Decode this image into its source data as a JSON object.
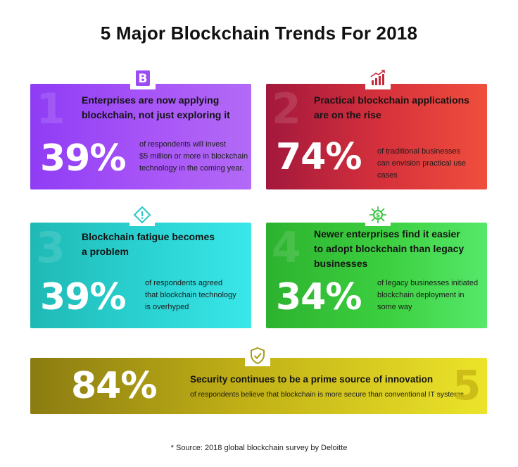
{
  "title": "5 Major Blockchain Trends For 2018",
  "colors": {
    "card1": "#a855f7",
    "card2": "#d8323c",
    "card3": "#2bd3d3",
    "card4": "#3cd040",
    "card5": "#bfae16",
    "icon1": "#9b4cf2",
    "icon2": "#c62a3c",
    "icon3": "#27c9c7",
    "icon4": "#35c33a",
    "icon5": "#a79c14"
  },
  "cards": [
    {
      "number": "1",
      "icon": "bitcoin-icon",
      "headline": [
        "Enterprises are now applying",
        "blockchain,  not just exploring it"
      ],
      "percent": "39%",
      "description": [
        "of respondents will invest",
        "$5 million or more in blockchain",
        "technology in the coming year."
      ]
    },
    {
      "number": "2",
      "icon": "rising-chart-icon",
      "headline": [
        "Practical blockchain applications",
        "are on the rise"
      ],
      "percent": "74%",
      "description": [
        "of traditional businesses",
        "can envision practical use cases"
      ]
    },
    {
      "number": "3",
      "icon": "warning-icon",
      "headline": [
        "Blockchain fatigue becomes",
        "a problem"
      ],
      "percent": "39%",
      "description": [
        "of respondents agreed",
        "that blockchain technology",
        "is overhyped"
      ]
    },
    {
      "number": "4",
      "icon": "coin-network-icon",
      "headline": [
        "Newer enterprises find it easier",
        "to adopt blockchain than legacy",
        "businesses"
      ],
      "percent": "34%",
      "description": [
        "of legacy businesses initiated",
        "blockchain deployment in",
        "some way"
      ]
    },
    {
      "number": "5",
      "icon": "shield-check-icon",
      "headline": [
        "Security continues to be a prime source of innovation"
      ],
      "percent": "84%",
      "description": [
        "of respondents believe that blockchain is more secure than conventional IT systems"
      ]
    }
  ],
  "source": "* Source: 2018 global blockchain survey by Deloitte"
}
